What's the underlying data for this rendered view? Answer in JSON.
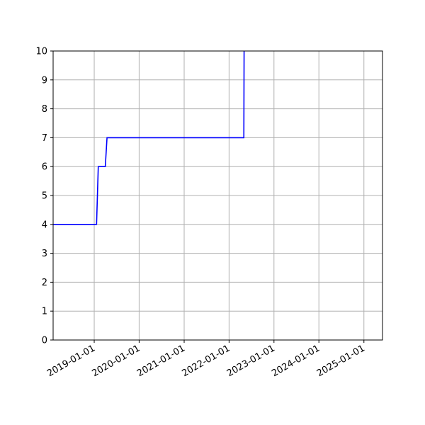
{
  "chart_data": {
    "type": "line",
    "title": "",
    "xlabel": "",
    "ylabel": "",
    "x_axis_type": "date",
    "xlim": [
      "2018-02-01",
      "2025-06-01"
    ],
    "ylim": [
      0,
      10
    ],
    "grid": true,
    "legend": "none",
    "x_ticks": [
      "2019-01-01",
      "2020-01-01",
      "2021-01-01",
      "2022-01-01",
      "2023-01-01",
      "2024-01-01",
      "2025-01-01"
    ],
    "x_tick_labels": [
      "2019-01-01",
      "2020-01-01",
      "2021-01-01",
      "2022-01-01",
      "2023-01-01",
      "2024-01-01",
      "2025-01-01"
    ],
    "y_ticks": [
      0,
      1,
      2,
      3,
      4,
      5,
      6,
      7,
      8,
      9,
      10
    ],
    "y_tick_labels": [
      "0",
      "1",
      "2",
      "3",
      "4",
      "5",
      "6",
      "7",
      "8",
      "9",
      "10"
    ],
    "series": [
      {
        "color": "#0000ff",
        "points": [
          [
            "2018-02-01",
            4
          ],
          [
            "2019-01-20",
            4
          ],
          [
            "2019-02-03",
            6
          ],
          [
            "2019-04-01",
            6
          ],
          [
            "2019-04-15",
            7
          ],
          [
            "2022-05-01",
            7
          ],
          [
            "2022-05-03",
            10
          ]
        ]
      }
    ]
  }
}
